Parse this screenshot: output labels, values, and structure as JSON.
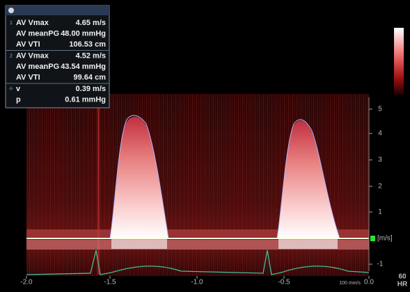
{
  "measurements": {
    "groups": [
      {
        "number": "1",
        "rows": [
          {
            "label": "AV Vmax",
            "value": "4.65 m/s"
          },
          {
            "label": "AV meanPG",
            "value": "48.00 mmHg"
          },
          {
            "label": "AV VTI",
            "value": "106.53 cm"
          }
        ]
      },
      {
        "number": "2",
        "rows": [
          {
            "label": "AV Vmax",
            "value": "4.52 m/s"
          },
          {
            "label": "AV meanPG",
            "value": "43.54 mmHg"
          },
          {
            "label": "AV VTI",
            "value": "99.64 cm"
          }
        ]
      },
      {
        "rows": [
          {
            "label": "v",
            "value": "0.39 m/s"
          },
          {
            "label": "p",
            "value": "0.61 mmHg"
          }
        ]
      }
    ]
  },
  "velocity_axis": {
    "ticks": [
      "5",
      "4",
      "3",
      "2",
      "1",
      "-1"
    ],
    "unit": "[m/s]"
  },
  "time_axis": {
    "ticks": [
      "-2.0",
      "-1.5",
      "-1.0",
      "-0.5",
      "0.0"
    ],
    "sweep": "100 mm/s"
  },
  "heart_rate": {
    "value": "60",
    "label": "HR"
  }
}
